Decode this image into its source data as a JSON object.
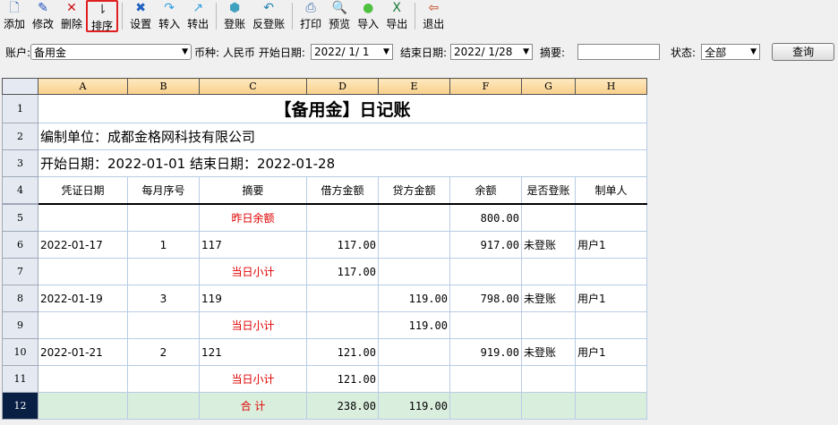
{
  "toolbar": [
    {
      "label": "添加",
      "icon": "document-icon",
      "glyph": "🗋",
      "color": "#4070b0"
    },
    {
      "label": "修改",
      "icon": "pencil-icon",
      "glyph": "✎",
      "color": "#2050c0"
    },
    {
      "label": "删除",
      "icon": "delete-x-icon",
      "glyph": "✕",
      "color": "#d01010"
    },
    {
      "label": "排序",
      "icon": "sort-icon",
      "glyph": "⇂",
      "color": "#333"
    },
    {
      "label": "设置",
      "icon": "settings-tools-icon",
      "glyph": "✖",
      "color": "#2060c0"
    },
    {
      "label": "转入",
      "icon": "transfer-in-icon",
      "glyph": "↷",
      "color": "#30a0e0"
    },
    {
      "label": "转出",
      "icon": "transfer-out-icon",
      "glyph": "↗",
      "color": "#30a0e0"
    },
    {
      "label": "登账",
      "icon": "post-icon",
      "glyph": "⬢",
      "color": "#40a0c0"
    },
    {
      "label": "反登账",
      "icon": "unpost-icon",
      "glyph": "↶",
      "color": "#2080b0"
    },
    {
      "label": "打印",
      "icon": "printer-icon",
      "glyph": "⎙",
      "color": "#4070b0"
    },
    {
      "label": "预览",
      "icon": "preview-icon",
      "glyph": "🔍",
      "color": "#4070b0"
    },
    {
      "label": "导入",
      "icon": "import-icon",
      "glyph": "●",
      "color": "#50c040"
    },
    {
      "label": "导出",
      "icon": "excel-export-icon",
      "glyph": "X",
      "color": "#1a7a3a"
    },
    {
      "label": "退出",
      "icon": "exit-door-icon",
      "glyph": "⇦",
      "color": "#c04010"
    }
  ],
  "filter": {
    "account_label": "账户:",
    "account": "备用金",
    "currency": "币种: 人民币",
    "start_label": "开始日期:",
    "start": "2022/ 1/ 1",
    "end_label": "结束日期:",
    "end": "2022/ 1/28",
    "summary_label": "摘要:",
    "summary": "",
    "status_label": "状态:",
    "status": "全部",
    "query": "查询"
  },
  "sheet": {
    "columns": [
      "A",
      "B",
      "C",
      "D",
      "E",
      "F",
      "G",
      "H"
    ],
    "title": "【备用金】日记账",
    "unit": "编制单位：成都金格网科技有限公司",
    "period": "开始日期：2022-01-01 结束日期：2022-01-28",
    "headers": [
      "凭证日期",
      "每月序号",
      "摘要",
      "借方金额",
      "贷方金额",
      "余额",
      "是否登账",
      "制单人"
    ],
    "rows": [
      [
        "",
        "",
        "昨日余额",
        "",
        "",
        "800.00",
        "",
        ""
      ],
      [
        "2022-01-17",
        "1",
        "117",
        "117.00",
        "",
        "917.00",
        "未登账",
        "用户1"
      ],
      [
        "",
        "",
        "当日小计",
        "117.00",
        "",
        "",
        "",
        ""
      ],
      [
        "2022-01-19",
        "3",
        "119",
        "",
        "119.00",
        "798.00",
        "未登账",
        "用户1"
      ],
      [
        "",
        "",
        "当日小计",
        "",
        "119.00",
        "",
        "",
        ""
      ],
      [
        "2022-01-21",
        "2",
        "121",
        "121.00",
        "",
        "919.00",
        "未登账",
        "用户1"
      ],
      [
        "",
        "",
        "当日小计",
        "121.00",
        "",
        "",
        "",
        ""
      ],
      [
        "",
        "",
        "合 计",
        "238.00",
        "119.00",
        "",
        "",
        ""
      ]
    ]
  }
}
